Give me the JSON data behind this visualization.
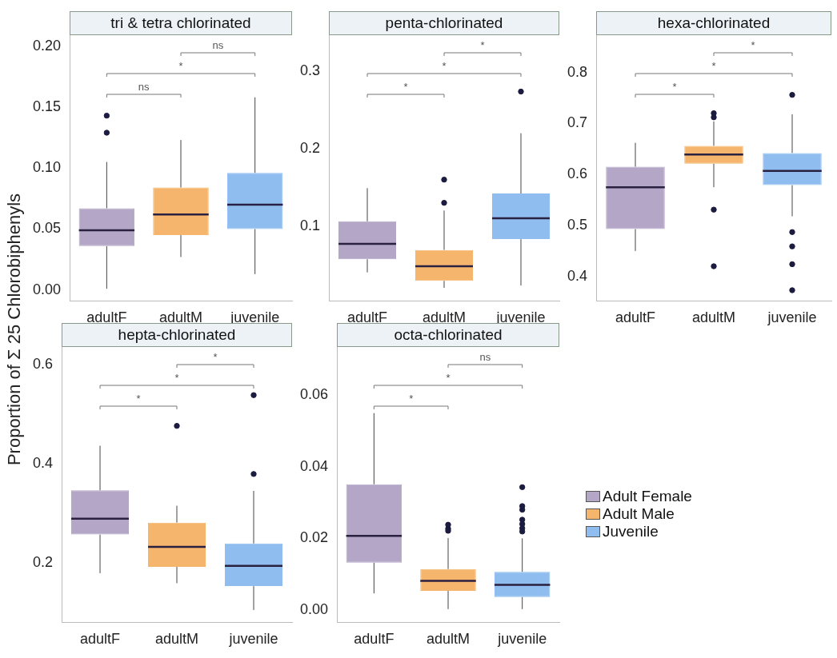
{
  "chart_data": [
    {
      "type": "box",
      "title": "tri & tetra chlorinated",
      "ylabel": "Proportion of Σ 25 Chlorobiphenyls",
      "categories": [
        "adultF",
        "adultM",
        "juvenile"
      ],
      "series": [
        {
          "color": "#b3a6c6",
          "boxes": [
            {
              "low": 0.001,
              "q1": 0.036,
              "median": 0.049,
              "q3": 0.067,
              "high": 0.105,
              "outliers": [
                0.143,
                0.129
              ]
            },
            null,
            null
          ]
        },
        {
          "color": "#f5b56c",
          "boxes": [
            null,
            {
              "low": 0.027,
              "q1": 0.045,
              "median": 0.062,
              "q3": 0.084,
              "high": 0.123
            },
            null
          ]
        },
        {
          "color": "#8fbdf0",
          "boxes": [
            null,
            null,
            {
              "low": 0.013,
              "q1": 0.05,
              "median": 0.07,
              "q3": 0.096,
              "high": 0.158
            }
          ]
        }
      ],
      "ylim": [
        -0.009,
        0.209
      ],
      "yticks": [
        {
          "value": 0,
          "label": "0.00"
        },
        {
          "value": 0.05,
          "label": "0.05"
        },
        {
          "value": 0.1,
          "label": "0.10"
        },
        {
          "value": 0.15,
          "label": "0.15"
        },
        {
          "value": 0.2,
          "label": "0.20"
        }
      ],
      "annotations": [
        "ns",
        "*",
        "ns"
      ]
    },
    {
      "type": "box",
      "title": "penta-chlorinated",
      "categories": [
        "adultF",
        "adultM",
        "juvenile"
      ],
      "series": [
        {
          "color": "#b3a6c6",
          "boxes": [
            {
              "low": 0.04,
              "q1": 0.057,
              "median": 0.077,
              "q3": 0.106,
              "high": 0.149
            },
            null,
            null
          ]
        },
        {
          "color": "#f5b56c",
          "boxes": [
            null,
            {
              "low": 0.02,
              "q1": 0.029,
              "median": 0.048,
              "q3": 0.069,
              "high": 0.12,
              "outliers": [
                0.16,
                0.13
              ]
            },
            null
          ]
        },
        {
          "color": "#8fbdf0",
          "boxes": [
            null,
            null,
            {
              "low": 0.023,
              "q1": 0.083,
              "median": 0.11,
              "q3": 0.142,
              "high": 0.22,
              "outliers": [
                0.274
              ]
            }
          ]
        }
      ],
      "ylim": [
        0.003,
        0.347
      ],
      "yticks": [
        0.1,
        0.2,
        0.3
      ],
      "annotations": [
        "*",
        "*",
        "*"
      ]
    },
    {
      "type": "box",
      "title": "hexa-chlorinated",
      "categories": [
        "adultF",
        "adultM",
        "juvenile"
      ],
      "series": [
        {
          "color": "#b3a6c6",
          "boxes": [
            {
              "low": 0.45,
              "q1": 0.493,
              "median": 0.575,
              "q3": 0.615,
              "high": 0.662
            },
            null,
            null
          ]
        },
        {
          "color": "#f5b56c",
          "boxes": [
            null,
            {
              "low": 0.575,
              "q1": 0.621,
              "median": 0.639,
              "q3": 0.656,
              "high": 0.704,
              "outliers": [
                0.72,
                0.712,
                0.531,
                0.42
              ]
            },
            null
          ]
        },
        {
          "color": "#8fbdf0",
          "boxes": [
            null,
            null,
            {
              "low": 0.518,
              "q1": 0.579,
              "median": 0.607,
              "q3": 0.642,
              "high": 0.718,
              "outliers": [
                0.756,
                0.487,
                0.459,
                0.424,
                0.373
              ]
            }
          ]
        }
      ],
      "ylim": [
        0.352,
        0.873
      ],
      "yticks": [
        0.4,
        0.5,
        0.6,
        0.7,
        0.8
      ],
      "annotations": [
        "*",
        "*",
        "*"
      ]
    },
    {
      "type": "box",
      "title": "hepta-chlorinated",
      "categories": [
        "adultF",
        "adultM",
        "juvenile"
      ],
      "series": [
        {
          "color": "#b3a6c6",
          "boxes": [
            {
              "low": 0.179,
              "q1": 0.257,
              "median": 0.289,
              "q3": 0.346,
              "high": 0.436
            },
            null,
            null
          ]
        },
        {
          "color": "#f5b56c",
          "boxes": [
            null,
            {
              "low": 0.159,
              "q1": 0.192,
              "median": 0.232,
              "q3": 0.281,
              "high": 0.315,
              "outliers": [
                0.476
              ]
            },
            null
          ]
        },
        {
          "color": "#8fbdf0",
          "boxes": [
            null,
            null,
            {
              "low": 0.105,
              "q1": 0.153,
              "median": 0.194,
              "q3": 0.239,
              "high": 0.345,
              "outliers": [
                0.379,
                0.538
              ]
            }
          ]
        }
      ],
      "ylim": [
        0.08,
        0.635
      ],
      "yticks": [
        0.2,
        0.4,
        0.6
      ],
      "annotations": [
        "*",
        "*",
        "*"
      ]
    },
    {
      "type": "box",
      "title": "octa-chlorinated",
      "categories": [
        "adultF",
        "adultM",
        "juvenile"
      ],
      "legend": "right",
      "series": [
        {
          "name": "Adult Female",
          "color": "#b3a6c6",
          "boxes": [
            {
              "low": 0.0046,
              "q1": 0.0132,
              "median": 0.0207,
              "q3": 0.0351,
              "high": 0.055
            },
            null,
            null
          ]
        },
        {
          "name": "Adult Male",
          "color": "#f5b56c",
          "boxes": [
            null,
            {
              "low": 0.0002,
              "q1": 0.0053,
              "median": 0.0081,
              "q3": 0.0114,
              "high": 0.0201,
              "outliers": [
                0.0238,
                0.0227,
                0.0221
              ]
            },
            null
          ]
        },
        {
          "name": "Juvenile",
          "color": "#8fbdf0",
          "boxes": [
            null,
            null,
            {
              "low": 0.0002,
              "q1": 0.0036,
              "median": 0.007,
              "q3": 0.0106,
              "high": 0.02,
              "outliers": [
                0.0343,
                0.029,
                0.028,
                0.0252,
                0.024,
                0.0228,
                0.0219
              ]
            }
          ]
        }
      ],
      "ylim": [
        -0.0035,
        0.0735
      ],
      "yticks": [
        {
          "value": 0,
          "label": "0.00"
        },
        {
          "value": 0.02,
          "label": "0.02"
        },
        {
          "value": 0.04,
          "label": "0.04"
        },
        {
          "value": 0.06,
          "label": "0.06"
        }
      ],
      "annotations": [
        "*",
        "*",
        "ns"
      ]
    }
  ]
}
